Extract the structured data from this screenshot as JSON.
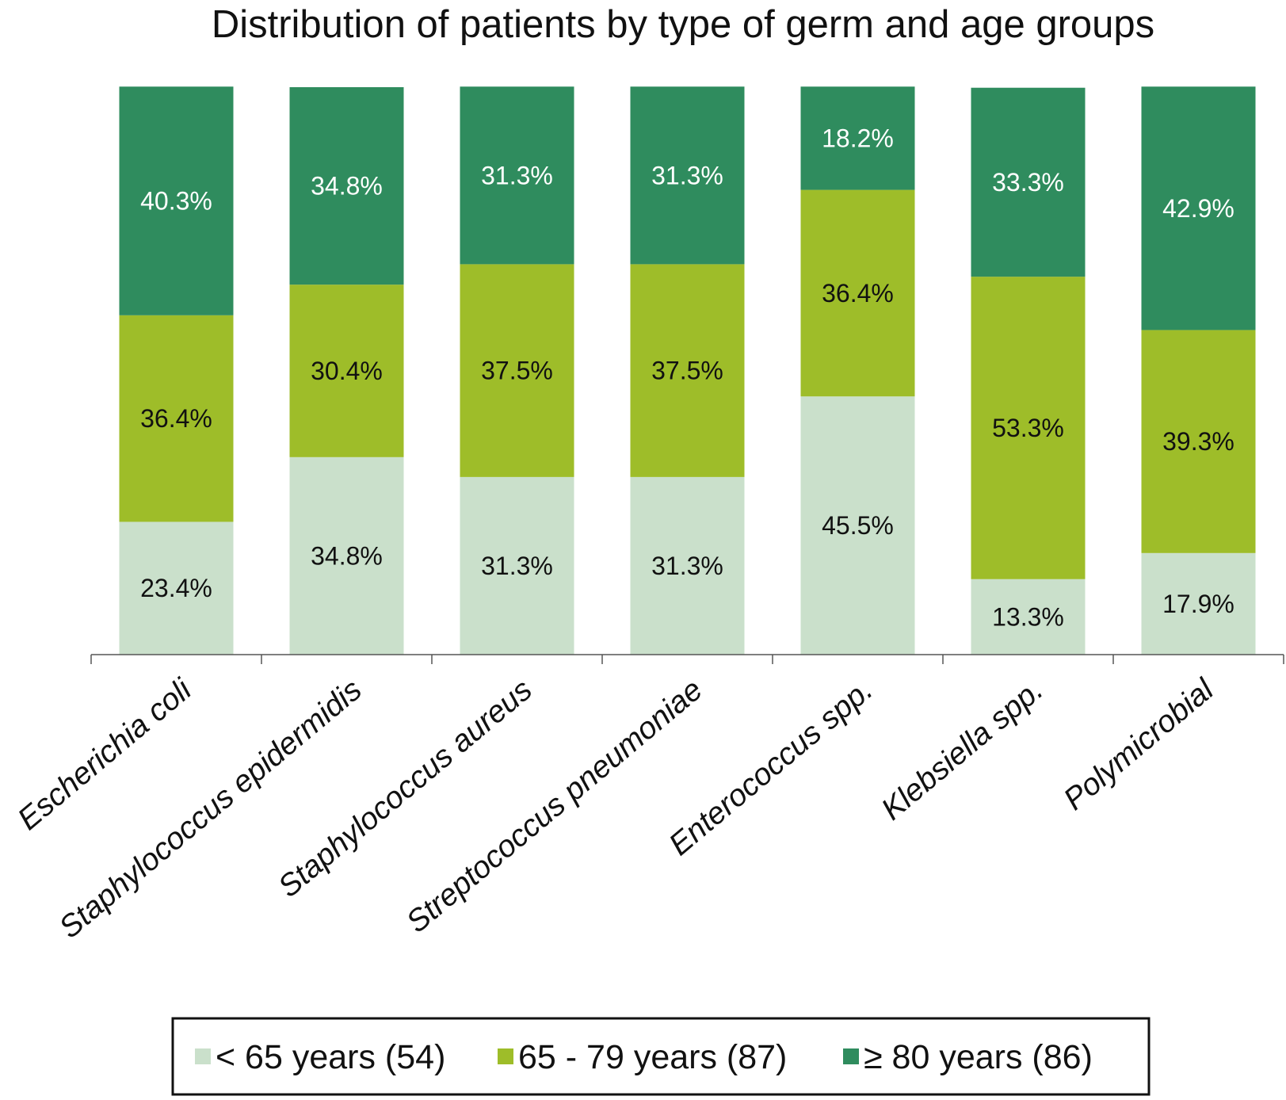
{
  "chart_data": {
    "type": "bar",
    "stacked": true,
    "title": "Distribution of patients by type of germ and age groups",
    "xlabel": "",
    "ylabel": "",
    "ylim": [
      0,
      100
    ],
    "grid": false,
    "legend_position": "bottom-center",
    "categories": [
      "Escherichia coli",
      "Staphylococcus epidermidis",
      "Staphylococcus aureus",
      "Streptococcus pneumoniae",
      "Enterococcus spp.",
      "Klebsiella spp.",
      "Polymicrobial"
    ],
    "series": [
      {
        "name": "< 65 years (54)",
        "color": "#cae0cb",
        "label_color": "#111111",
        "values": [
          23.4,
          34.8,
          31.3,
          31.3,
          45.5,
          13.3,
          17.9
        ],
        "labels": [
          "23.4%",
          "34.8%",
          "31.3%",
          "31.3%",
          "45.5%",
          "13.3%",
          "17.9%"
        ]
      },
      {
        "name": "65 - 79 years (87)",
        "color": "#9ebd29",
        "label_color": "#111111",
        "values": [
          36.4,
          30.4,
          37.5,
          37.5,
          36.4,
          53.3,
          39.3
        ],
        "labels": [
          "36.4%",
          "30.4%",
          "37.5%",
          "37.5%",
          "36.4%",
          "53.3%",
          "39.3%"
        ]
      },
      {
        "name": "≥ 80 years (86)",
        "color": "#2f8c5e",
        "label_color": "#ffffff",
        "values": [
          40.3,
          34.8,
          31.3,
          31.3,
          18.2,
          33.3,
          42.9
        ],
        "labels": [
          "40.3%",
          "34.8%",
          "31.3%",
          "31.3%",
          "18.2%",
          "33.3%",
          "42.9%"
        ]
      }
    ]
  },
  "colors": {
    "axis": "#555555",
    "legend_border": "#111111",
    "text": "#111111"
  }
}
